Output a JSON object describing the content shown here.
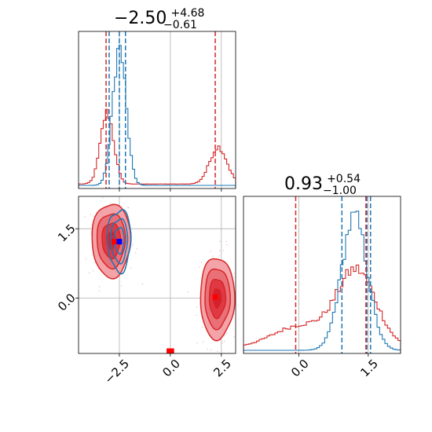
{
  "chart_data": {
    "type": "corner",
    "colors": {
      "blue": "#1f77b4",
      "red": "#d62728",
      "red_fill": "#f08080",
      "grid": "#b0b0b0"
    },
    "parameters": [
      "p0",
      "p1"
    ],
    "titles": {
      "p0": {
        "median": "−2.50",
        "plus": "+4.68",
        "minus": "−0.61"
      },
      "p1": {
        "median": "0.93",
        "plus": "+0.54",
        "minus": "−1.00"
      }
    },
    "axes": {
      "p0": {
        "range": [
          -4.5,
          3.2
        ],
        "ticks": [
          -2.5,
          0.0,
          2.5
        ],
        "tick_labels": [
          "−2.5",
          "0.0",
          "2.5"
        ]
      },
      "p1": {
        "range": [
          -1.2,
          2.2
        ],
        "ticks": [
          0.0,
          1.5
        ],
        "tick_labels": [
          "0.0",
          "1.5"
        ]
      }
    },
    "grid": true,
    "hist_p0": {
      "blue": {
        "peak": -2.5,
        "sigma": 0.33,
        "height": 1.0
      },
      "red": [
        {
          "peak": -3.1,
          "sigma": 0.32,
          "height": 0.52
        },
        {
          "peak": 2.35,
          "sigma": 0.42,
          "height": 0.27
        }
      ],
      "quantiles_blue": [
        -3.0,
        -2.5,
        -2.2
      ],
      "quantiles_red": [
        -3.15,
        2.2
      ]
    },
    "hist_p1": {
      "blue": {
        "peak": 1.2,
        "sigma": 0.28,
        "height": 0.97
      },
      "red": [
        {
          "peak": 1.25,
          "sigma": 0.42,
          "height": 0.55
        },
        {
          "peak": 0.05,
          "sigma": 0.6,
          "height": 0.16
        }
      ],
      "quantiles_blue": [
        0.93,
        1.47,
        1.55
      ],
      "quantiles_red": [
        -0.07,
        1.45
      ]
    },
    "scatter_2d": {
      "red_modes": [
        {
          "x": -2.9,
          "y": 1.25,
          "sx": 0.45,
          "sy": 0.38
        },
        {
          "x": 2.3,
          "y": 0.0,
          "sx": 0.4,
          "sy": 0.42
        }
      ],
      "blue_mode": {
        "x": -2.5,
        "y": 1.25,
        "sx": 0.3,
        "sy": 0.35
      },
      "markers": [
        {
          "x": -2.75,
          "y": 1.22,
          "color": "red"
        },
        {
          "x": -2.5,
          "y": 1.22,
          "color": "blue"
        },
        {
          "x": 2.2,
          "y": 0.02,
          "color": "red"
        },
        {
          "x": -0.05,
          "y": -1.15,
          "color": "red"
        },
        {
          "x": 0.05,
          "y": -1.15,
          "color": "red"
        }
      ]
    }
  }
}
